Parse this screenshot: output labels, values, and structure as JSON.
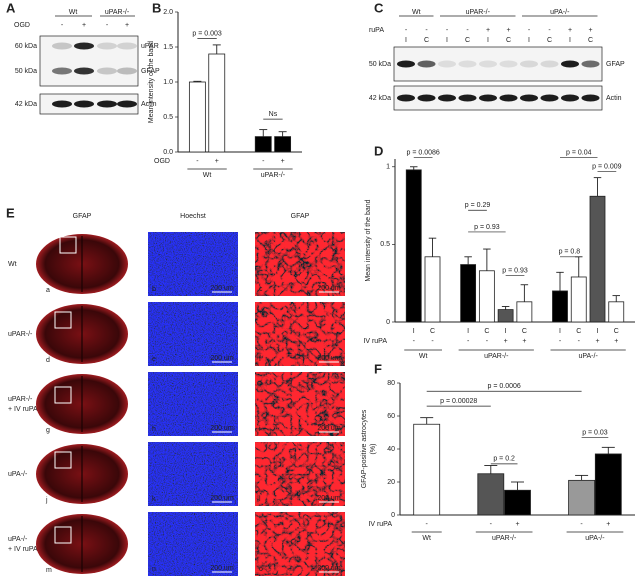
{
  "panel_letters": [
    "A",
    "B",
    "C",
    "D",
    "E",
    "F"
  ],
  "blot_a": {
    "groups": [
      "Wt",
      "uPAR-/-"
    ],
    "row_label": "OGD",
    "lanes": [
      "-",
      "+",
      "-",
      "+"
    ],
    "mw": [
      "60 kDa",
      "50 kDa",
      "42 kDa"
    ],
    "proteins": [
      "uPAR",
      "GFAP",
      "Actin"
    ]
  },
  "blot_c": {
    "groups": [
      "Wt",
      "uPAR-/-",
      "uPA-/-"
    ],
    "row_label": "ruPA",
    "treatment": [
      "-",
      "-",
      "-",
      "-",
      "+",
      "+",
      "-",
      "-",
      "+",
      "+"
    ],
    "lanes": [
      "I",
      "C",
      "I",
      "C",
      "I",
      "C",
      "I",
      "C",
      "I",
      "C"
    ],
    "mw": [
      "50 kDa",
      "42 kDa"
    ],
    "proteins": [
      "GFAP",
      "Actin"
    ]
  },
  "panel_e": {
    "columns": [
      "GFAP",
      "Hoechst",
      "GFAP"
    ],
    "rows": [
      [
        "Wt"
      ],
      [
        "uPAR-/-"
      ],
      [
        "uPAR-/-",
        "+ IV ruPA"
      ],
      [
        "uPA-/-"
      ],
      [
        "uPA-/-",
        "+ IV ruPA"
      ]
    ],
    "letters": [
      "a",
      "b",
      "c",
      "d",
      "e",
      "f",
      "g",
      "h",
      "i",
      "j",
      "k",
      "l",
      "m",
      "n",
      "o"
    ],
    "scale_bar": "200 um"
  },
  "chart_data": [
    {
      "type": "bar",
      "y_label": "Mean intensity of the band",
      "ylim": [
        0,
        2
      ],
      "yticks": [
        {
          "value": 0,
          "label": "0.0"
        },
        {
          "value": 0.5,
          "label": "0.5"
        },
        {
          "value": 1,
          "label": "1.0"
        },
        {
          "value": 1.5,
          "label": "1.5"
        },
        {
          "value": 2,
          "label": "2.0"
        }
      ],
      "x_row_label": "OGD",
      "groups": [
        {
          "label": "Wt",
          "categories": [
            "-",
            "+"
          ],
          "values": [
            1.0,
            1.4
          ],
          "errors": [
            0.01,
            0.13
          ],
          "colors": [
            "#ffffff",
            "#ffffff"
          ]
        },
        {
          "label": "uPAR-/-",
          "categories": [
            "-",
            "+"
          ],
          "values": [
            0.22,
            0.22
          ],
          "errors": [
            0.1,
            0.07
          ],
          "colors": [
            "#000000",
            "#000000"
          ]
        }
      ],
      "annotations": [
        "p = 0.003",
        "Ns"
      ]
    },
    {
      "type": "bar",
      "y_label": "Mean intensity of the band",
      "ylim": [
        0,
        1.05
      ],
      "yticks": [
        0,
        0.5,
        1
      ],
      "x_row_label": "IV ruPA",
      "groups": [
        {
          "label": "Wt",
          "categories": [
            "I",
            "C"
          ],
          "treatment": [
            "-",
            "-"
          ],
          "values": [
            0.98,
            0.42
          ],
          "errors": [
            0.02,
            0.12
          ],
          "colors": [
            "#000000",
            "#ffffff"
          ]
        },
        {
          "label": "uPAR-/-",
          "categories": [
            "I",
            "C",
            "I",
            "C"
          ],
          "treatment": [
            "-",
            "-",
            "+",
            "+"
          ],
          "values": [
            0.37,
            0.33,
            0.08,
            0.13
          ],
          "errors": [
            0.05,
            0.14,
            0.02,
            0.11
          ],
          "colors": [
            "#000000",
            "#ffffff",
            "#555555",
            "#ffffff"
          ]
        },
        {
          "label": "uPA-/-",
          "categories": [
            "I",
            "C",
            "I",
            "C"
          ],
          "treatment": [
            "-",
            "-",
            "+",
            "+"
          ],
          "values": [
            0.2,
            0.29,
            0.81,
            0.13
          ],
          "errors": [
            0.12,
            0.13,
            0.12,
            0.04
          ],
          "colors": [
            "#000000",
            "#ffffff",
            "#555555",
            "#ffffff"
          ]
        }
      ],
      "annotations": [
        "p = 0.0086",
        "p = 0.29",
        "p = 0.93",
        "p = 0.93",
        "p = 0.04",
        "p = 0.009",
        "p = 0.8"
      ]
    },
    {
      "type": "bar",
      "y_label": [
        "GFAP-positive astrocytes",
        "(%)"
      ],
      "ylim": [
        0,
        80
      ],
      "yticks": [
        0,
        20,
        40,
        60,
        80
      ],
      "x_row_label": "IV ruPA",
      "groups": [
        {
          "label": "Wt",
          "categories": [
            "-"
          ],
          "values": [
            55
          ],
          "errors": [
            4
          ],
          "colors": [
            "#ffffff"
          ]
        },
        {
          "label": "uPAR-/-",
          "categories": [
            "-",
            "+"
          ],
          "values": [
            25,
            15
          ],
          "errors": [
            5,
            5
          ],
          "colors": [
            "#555555",
            "#000000"
          ]
        },
        {
          "label": "uPA-/-",
          "categories": [
            "-",
            "+"
          ],
          "values": [
            21,
            37
          ],
          "errors": [
            3,
            4
          ],
          "colors": [
            "#999999",
            "#000000"
          ]
        }
      ],
      "annotations": [
        "p = 0.0006",
        "p = 0.00028",
        "p = 0.2",
        "p = 0.03"
      ]
    }
  ]
}
